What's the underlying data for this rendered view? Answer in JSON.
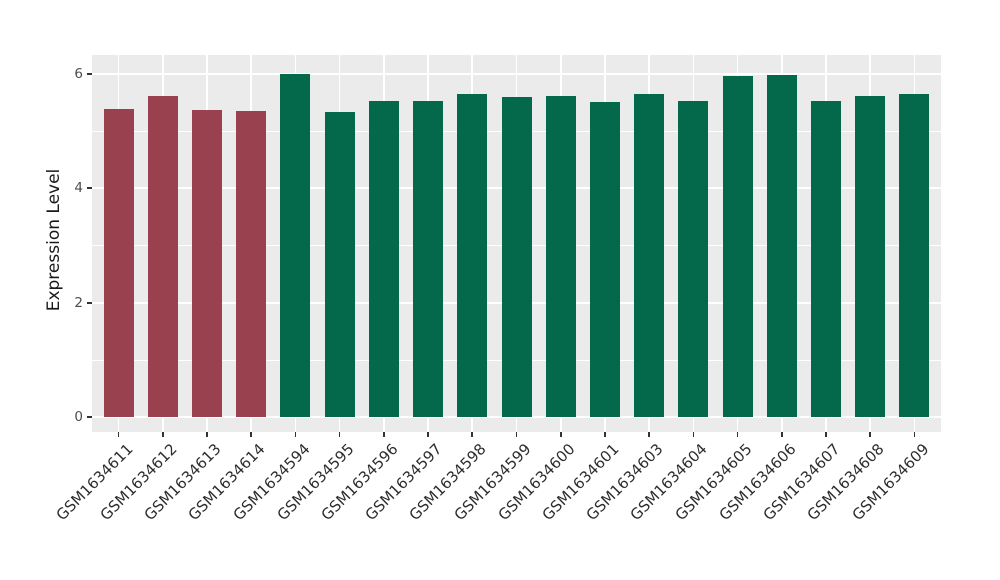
{
  "chart_data": {
    "type": "bar",
    "title": "",
    "xlabel": "",
    "ylabel": "Expression Level",
    "categories": [
      "GSM1634611",
      "GSM1634612",
      "GSM1634613",
      "GSM1634614",
      "GSM1634594",
      "GSM1634595",
      "GSM1634596",
      "GSM1634597",
      "GSM1634598",
      "GSM1634599",
      "GSM1634600",
      "GSM1634601",
      "GSM1634603",
      "GSM1634604",
      "GSM1634605",
      "GSM1634606",
      "GSM1634607",
      "GSM1634608",
      "GSM1634609"
    ],
    "values": [
      5.38,
      5.62,
      5.37,
      5.35,
      5.99,
      5.33,
      5.52,
      5.52,
      5.64,
      5.6,
      5.61,
      5.51,
      5.64,
      5.53,
      5.96,
      5.98,
      5.53,
      5.61,
      5.65
    ],
    "colors": [
      "#9A4150",
      "#9A4150",
      "#9A4150",
      "#9A4150",
      "#04694A",
      "#04694A",
      "#04694A",
      "#04694A",
      "#04694A",
      "#04694A",
      "#04694A",
      "#04694A",
      "#04694A",
      "#04694A",
      "#04694A",
      "#04694A",
      "#04694A",
      "#04694A",
      "#04694A"
    ],
    "yticks": [
      0,
      2,
      4,
      6
    ],
    "minor_yticks": [
      1,
      3,
      5
    ],
    "ylim": [
      -0.26,
      6.33
    ],
    "x_tick_rotation_deg": 45,
    "grid": true,
    "legend": "none",
    "theme": {
      "panel_background": "#EBEBEB",
      "grid_color": "#FFFFFF",
      "figure_background": "#FFFFFF",
      "axis_text_color": "#4D4D4D",
      "x_axis_text_color": "#2E2E2E",
      "axis_title_color": "#1A1A1A",
      "tick_mark_color": "#333333",
      "bar_color_group1": "#9A4150",
      "bar_color_group2": "#04694A"
    }
  }
}
